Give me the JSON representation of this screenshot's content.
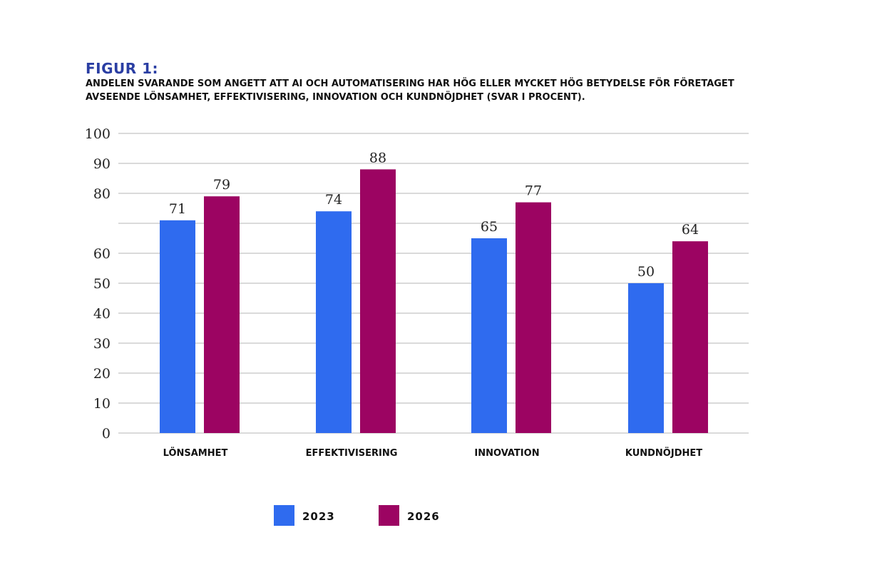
{
  "figure": {
    "label": "FIGUR 1:",
    "subtitle_line1": "ANDELEN SVARANDE SOM ANGETT ATT AI OCH AUTOMATISERING HAR HÖG ELLER MYCKET HÖG BETYDELSE FÖR FÖRETAGET",
    "subtitle_line2": "AVSEENDE LÖNSAMHET, EFFEKTIVISERING, INNOVATION OCH KUNDNÖJDHET (SVAR I PROCENT)."
  },
  "colors": {
    "title": "#2a3ea3",
    "series_2023": "#2f6bef",
    "series_2026": "#9c0462",
    "grid": "#b5b5b5"
  },
  "chart_data": {
    "type": "bar",
    "title": "FIGUR 1:",
    "categories": [
      "LÖNSAMHET",
      "EFFEKTIVISERING",
      "INNOVATION",
      "KUNDNÖJDHET"
    ],
    "series": [
      {
        "name": "2023",
        "values": [
          71,
          74,
          65,
          50
        ],
        "color": "#2f6bef"
      },
      {
        "name": "2026",
        "values": [
          79,
          88,
          77,
          64
        ],
        "color": "#9c0462"
      }
    ],
    "ylim": [
      0,
      100
    ],
    "yticks": [
      0,
      10,
      20,
      30,
      40,
      50,
      60,
      70,
      80,
      90,
      100
    ],
    "ytick_labels": [
      "0",
      "10",
      "20",
      "30",
      "40",
      "50",
      "60",
      "",
      "80",
      "90",
      "100"
    ],
    "grid": true,
    "legend_position": "bottom-center",
    "xlabel": "",
    "ylabel": ""
  }
}
